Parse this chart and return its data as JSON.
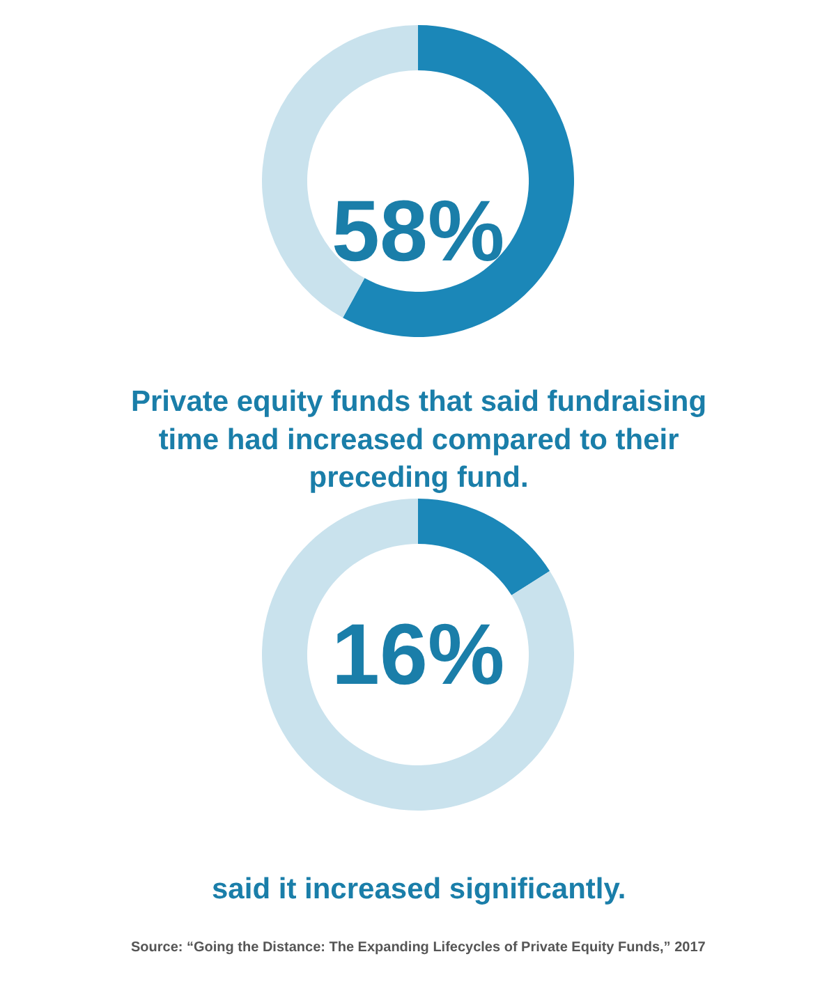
{
  "chart_data": [
    {
      "type": "donut",
      "categories": [
        null,
        null
      ],
      "values": [
        58,
        42
      ],
      "colors": [
        "#1b87b8",
        "#c9e2ed"
      ],
      "annotations": [
        "58%",
        "Private equity funds that said fundraising time had increased compared to their preceding fund."
      ]
    },
    {
      "type": "donut",
      "categories": [
        null,
        null
      ],
      "values": [
        16,
        84
      ],
      "colors": [
        "#1b87b8",
        "#c9e2ed"
      ],
      "annotations": [
        "16%",
        "said it increased significantly.",
        "Source: “Going the Distance: The Expanding Lifecycles of Private Equity Funds,” 2017"
      ]
    }
  ]
}
